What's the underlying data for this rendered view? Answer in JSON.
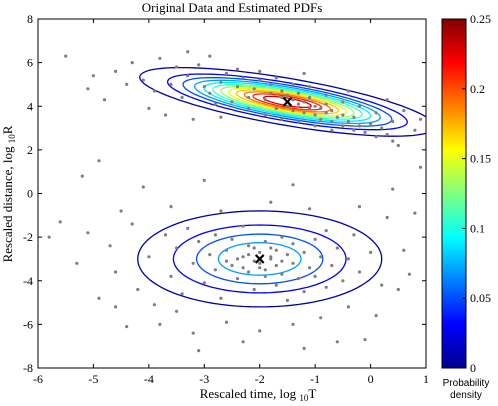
{
  "chart_data": {
    "type": "scatter",
    "title": "Original Data and Estimated PDFs",
    "xlabel": "Rescaled time, log",
    "xlabel_sub": "10",
    "xlabel_var": "T",
    "ylabel": "Rescaled distance, log",
    "ylabel_sub": "10",
    "ylabel_var": "R",
    "xlim": [
      -6,
      1
    ],
    "ylim": [
      -8,
      8
    ],
    "xticks": [
      -6,
      -5,
      -4,
      -3,
      -2,
      -1,
      0,
      1
    ],
    "yticks": [
      -8,
      -6,
      -4,
      -2,
      0,
      2,
      4,
      6,
      8
    ],
    "grid": false,
    "point_color": "#7f7f7f",
    "cluster_centers": [
      {
        "x": -1.5,
        "y": 4.2
      },
      {
        "x": -2.0,
        "y": -3.0
      }
    ],
    "center_marker": "x",
    "components": [
      {
        "center": [
          -1.5,
          4.2
        ],
        "sx": 1.05,
        "sy": 0.62,
        "rho": -0.72,
        "peak_density": 0.25
      },
      {
        "center": [
          -2.0,
          -3.0
        ],
        "sx": 1.05,
        "sy": 1.05,
        "rho": 0.0,
        "peak_density": 0.09
      }
    ],
    "colorbar": {
      "label": [
        "Probability",
        "density"
      ],
      "min": 0,
      "max": 0.25,
      "ticks": [
        0,
        0.05,
        0.1,
        0.15,
        0.2,
        0.25
      ],
      "tick_labels": [
        "0",
        "0.05",
        "0.1",
        "0.15",
        "0.2",
        "0.25"
      ],
      "colormap": "jet"
    },
    "points": [
      [
        -4.1,
        5.2
      ],
      [
        -3.9,
        4.7
      ],
      [
        -3.6,
        5.0
      ],
      [
        -3.3,
        5.4
      ],
      [
        -3.1,
        5.9
      ],
      [
        -2.9,
        4.6
      ],
      [
        -2.7,
        5.1
      ],
      [
        -2.6,
        5.5
      ],
      [
        -2.4,
        4.9
      ],
      [
        -2.3,
        5.3
      ],
      [
        -2.2,
        4.4
      ],
      [
        -2.1,
        4.8
      ],
      [
        -2.0,
        5.2
      ],
      [
        -1.9,
        4.3
      ],
      [
        -1.8,
        4.6
      ],
      [
        -1.8,
        5.0
      ],
      [
        -1.7,
        3.9
      ],
      [
        -1.6,
        4.4
      ],
      [
        -1.6,
        4.7
      ],
      [
        -1.5,
        4.0
      ],
      [
        -1.5,
        4.5
      ],
      [
        -1.4,
        3.8
      ],
      [
        -1.4,
        4.3
      ],
      [
        -1.3,
        4.1
      ],
      [
        -1.3,
        4.6
      ],
      [
        -1.2,
        3.7
      ],
      [
        -1.2,
        4.2
      ],
      [
        -1.1,
        3.9
      ],
      [
        -1.1,
        4.4
      ],
      [
        -1.0,
        3.6
      ],
      [
        -1.0,
        4.0
      ],
      [
        -0.9,
        3.4
      ],
      [
        -0.9,
        3.9
      ],
      [
        -0.8,
        3.7
      ],
      [
        -0.8,
        4.1
      ],
      [
        -0.7,
        3.3
      ],
      [
        -0.7,
        3.8
      ],
      [
        -0.6,
        3.5
      ],
      [
        -0.5,
        3.1
      ],
      [
        -0.5,
        3.6
      ],
      [
        -0.4,
        3.3
      ],
      [
        -0.3,
        2.9
      ],
      [
        -0.3,
        3.5
      ],
      [
        -0.2,
        3.1
      ],
      [
        -0.1,
        2.8
      ],
      [
        0.0,
        3.2
      ],
      [
        0.1,
        2.6
      ],
      [
        0.2,
        3.0
      ],
      [
        0.3,
        2.7
      ],
      [
        0.4,
        2.4
      ],
      [
        -2.5,
        4.2
      ],
      [
        -2.8,
        4.1
      ],
      [
        -3.0,
        4.9
      ],
      [
        -3.4,
        4.4
      ],
      [
        -2.2,
        3.9
      ],
      [
        -1.9,
        3.6
      ],
      [
        -1.6,
        3.4
      ],
      [
        -1.3,
        3.3
      ],
      [
        -1.0,
        3.1
      ],
      [
        -0.7,
        2.9
      ],
      [
        -2.4,
        5.7
      ],
      [
        -2.0,
        5.6
      ],
      [
        -1.7,
        5.3
      ],
      [
        -1.4,
        5.0
      ],
      [
        -1.1,
        4.9
      ],
      [
        -0.8,
        4.5
      ],
      [
        -0.5,
        4.2
      ],
      [
        -0.2,
        4.0
      ],
      [
        0.1,
        3.7
      ],
      [
        0.4,
        3.3
      ],
      [
        -4.6,
        5.6
      ],
      [
        -4.3,
        6.0
      ],
      [
        -3.8,
        6.2
      ],
      [
        -3.5,
        5.8
      ],
      [
        -4.8,
        4.3
      ],
      [
        -5.0,
        5.4
      ],
      [
        -4.0,
        3.9
      ],
      [
        -3.7,
        3.6
      ],
      [
        -3.2,
        3.4
      ],
      [
        -2.7,
        3.5
      ],
      [
        0.6,
        3.8
      ],
      [
        0.8,
        2.9
      ],
      [
        0.3,
        4.3
      ],
      [
        -0.4,
        4.7
      ],
      [
        -1.2,
        5.5
      ],
      [
        0.9,
        3.4
      ],
      [
        0.5,
        2.2
      ],
      [
        -2.9,
        6.3
      ],
      [
        -3.3,
        6.5
      ],
      [
        -4.4,
        5.0
      ],
      [
        -5.1,
        -1.8
      ],
      [
        -4.7,
        -2.4
      ],
      [
        -4.6,
        -3.6
      ],
      [
        -4.3,
        -1.4
      ],
      [
        -4.2,
        -4.4
      ],
      [
        -4.0,
        -2.9
      ],
      [
        -3.9,
        -5.1
      ],
      [
        -3.7,
        -1.9
      ],
      [
        -3.6,
        -3.8
      ],
      [
        -3.5,
        -2.5
      ],
      [
        -3.4,
        -4.6
      ],
      [
        -3.3,
        -1.6
      ],
      [
        -3.2,
        -3.2
      ],
      [
        -3.1,
        -2.2
      ],
      [
        -3.0,
        -4.1
      ],
      [
        -2.9,
        -2.8
      ],
      [
        -2.8,
        -3.5
      ],
      [
        -2.8,
        -1.9
      ],
      [
        -2.7,
        -4.8
      ],
      [
        -2.6,
        -2.6
      ],
      [
        -2.5,
        -3.3
      ],
      [
        -2.5,
        -2.1
      ],
      [
        -2.4,
        -3.9
      ],
      [
        -2.3,
        -2.9
      ],
      [
        -2.3,
        -1.5
      ],
      [
        -2.2,
        -3.6
      ],
      [
        -2.2,
        -2.4
      ],
      [
        -2.1,
        -3.1
      ],
      [
        -2.1,
        -4.4
      ],
      [
        -2.0,
        -2.7
      ],
      [
        -2.0,
        -3.4
      ],
      [
        -1.9,
        -2.2
      ],
      [
        -1.9,
        -3.8
      ],
      [
        -1.8,
        -3.0
      ],
      [
        -1.8,
        -2.5
      ],
      [
        -1.7,
        -4.2
      ],
      [
        -1.7,
        -3.3
      ],
      [
        -1.6,
        -2.0
      ],
      [
        -1.6,
        -3.7
      ],
      [
        -1.5,
        -2.8
      ],
      [
        -1.5,
        -4.9
      ],
      [
        -1.4,
        -3.2
      ],
      [
        -1.4,
        -2.3
      ],
      [
        -1.3,
        -3.9
      ],
      [
        -1.2,
        -2.7
      ],
      [
        -1.2,
        -4.5
      ],
      [
        -1.1,
        -3.4
      ],
      [
        -1.0,
        -2.1
      ],
      [
        -1.0,
        -3.8
      ],
      [
        -0.9,
        -2.9
      ],
      [
        -0.8,
        -4.3
      ],
      [
        -0.8,
        -1.7
      ],
      [
        -0.7,
        -3.3
      ],
      [
        -0.6,
        -2.5
      ],
      [
        -0.5,
        -4.0
      ],
      [
        -0.4,
        -3.0
      ],
      [
        -0.3,
        -1.9
      ],
      [
        -0.2,
        -3.6
      ],
      [
        0.0,
        -2.7
      ],
      [
        0.2,
        -4.2
      ],
      [
        -2.4,
        -3.0
      ],
      [
        -2.2,
        -2.8
      ],
      [
        -2.0,
        -3.2
      ],
      [
        -1.8,
        -2.9
      ],
      [
        -2.1,
        -2.5
      ],
      [
        -1.9,
        -3.5
      ],
      [
        -2.3,
        -3.4
      ],
      [
        -1.7,
        -2.6
      ],
      [
        -2.6,
        -3.1
      ],
      [
        -1.6,
        -3.1
      ],
      [
        -5.6,
        -1.3
      ],
      [
        -5.3,
        -3.2
      ],
      [
        -4.9,
        -4.8
      ],
      [
        -4.5,
        -0.8
      ],
      [
        -4.4,
        -6.1
      ],
      [
        -3.8,
        -6.0
      ],
      [
        -3.2,
        -6.4
      ],
      [
        -2.6,
        -5.9
      ],
      [
        -2.0,
        -6.3
      ],
      [
        -1.4,
        -6.0
      ],
      [
        -0.9,
        -5.7
      ],
      [
        -0.4,
        -5.2
      ],
      [
        0.1,
        -5.6
      ],
      [
        0.5,
        -4.4
      ],
      [
        0.6,
        -2.6
      ],
      [
        0.3,
        -1.1
      ],
      [
        -0.2,
        -0.6
      ],
      [
        -1.1,
        -0.7
      ],
      [
        -1.8,
        -0.4
      ],
      [
        -2.7,
        -0.8
      ],
      [
        -3.6,
        -0.6
      ],
      [
        -4.1,
        0.3
      ],
      [
        -3.0,
        0.6
      ],
      [
        -1.4,
        0.4
      ],
      [
        0.4,
        0.2
      ],
      [
        0.7,
        -3.7
      ],
      [
        -0.1,
        -6.7
      ],
      [
        -1.2,
        -7.1
      ],
      [
        -2.3,
        -6.8
      ],
      [
        -3.5,
        -5.4
      ],
      [
        -5.5,
        6.3
      ],
      [
        -5.8,
        -2.0
      ],
      [
        0.8,
        -0.9
      ],
      [
        -4.9,
        1.5
      ],
      [
        -5.2,
        0.8
      ],
      [
        0.9,
        1.2
      ],
      [
        -0.6,
        -6.8
      ],
      [
        -3.1,
        -7.2
      ],
      [
        -4.6,
        -5.2
      ],
      [
        -5.1,
        4.8
      ]
    ]
  }
}
